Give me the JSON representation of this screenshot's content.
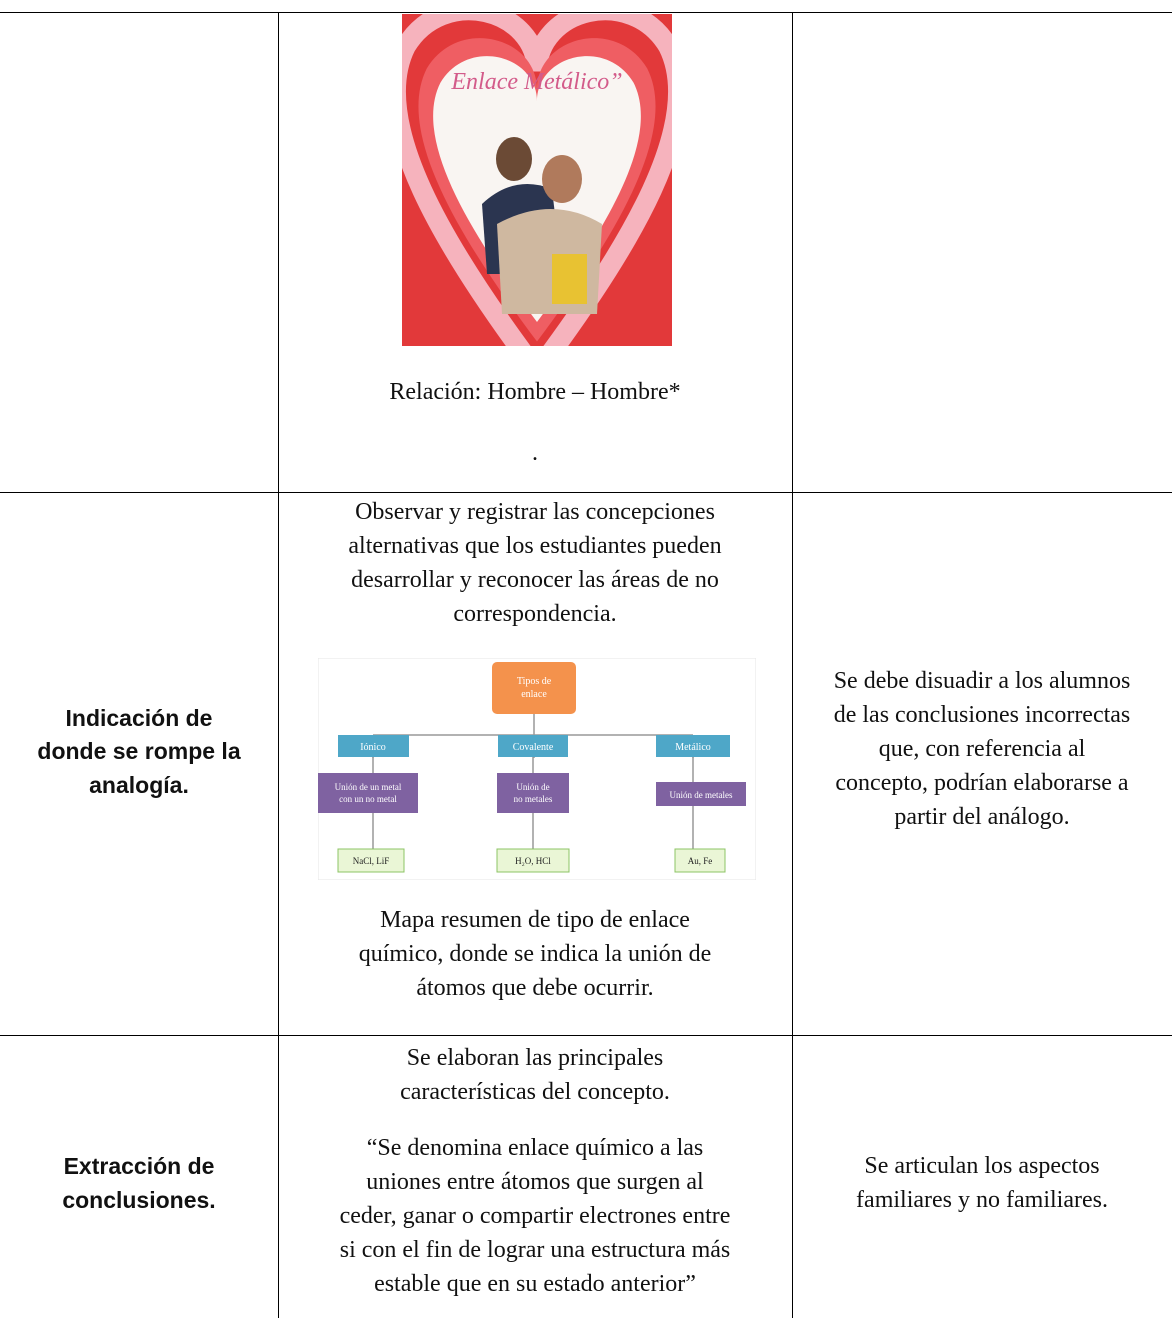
{
  "table": {
    "rows": [
      {
        "middle": {
          "image_text": "Enlace Metálico”",
          "caption": "Relación: Hombre – Hombre*",
          "extra": "."
        }
      },
      {
        "left": {
          "lines": [
            "Indicación de",
            "donde se rompe la",
            "analogía."
          ]
        },
        "middle": {
          "lines": [
            "Observar y registrar las concepciones",
            "alternativas que los estudiantes pueden",
            "desarrollar y reconocer las áreas de no",
            "correspondencia."
          ],
          "diagram": {
            "root": [
              "Tipos de",
              "enlace"
            ],
            "types": [
              "Iónico",
              "Covalente",
              "Metálico"
            ],
            "unions": [
              [
                "Unión de un metal",
                "con un no metal"
              ],
              [
                "Unión de",
                "no metales"
              ],
              [
                "Unión de metales"
              ]
            ],
            "examples": [
              "NaCl, LiF",
              "H₂O, HCl",
              "Au, Fe"
            ]
          },
          "caption_lines": [
            "Mapa resumen de tipo de enlace",
            "químico, donde se indica la unión de",
            "átomos que debe ocurrir."
          ]
        },
        "right": {
          "lines": [
            "Se debe disuadir a los alumnos",
            "de las conclusiones incorrectas",
            "que, con referencia al",
            "concepto, podrían elaborarse a",
            "partir del análogo."
          ]
        }
      },
      {
        "left": {
          "lines": [
            "Extracción de",
            "conclusiones."
          ]
        },
        "middle": {
          "lines": [
            "Se elaboran las principales",
            "características del concepto."
          ],
          "quote_lines": [
            "“Se denomina enlace químico a las",
            "uniones entre átomos que surgen al",
            "ceder, ganar o compartir electrones entre",
            "si con el fin de lograr una estructura más",
            "estable que en su estado anterior”"
          ]
        },
        "right": {
          "lines": [
            "Se articulan los aspectos",
            "familiares y no familiares."
          ]
        }
      }
    ]
  }
}
